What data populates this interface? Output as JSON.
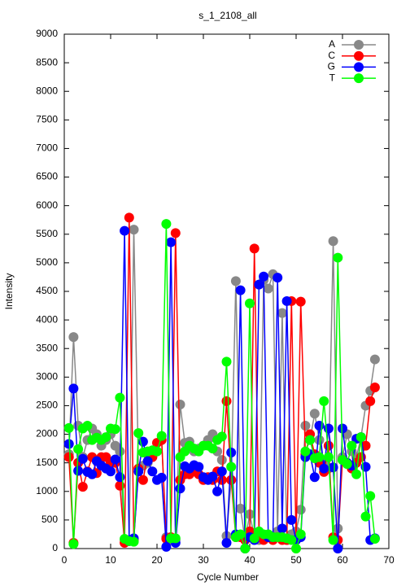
{
  "chart_data": {
    "type": "line",
    "title": "s_1_2108_all",
    "x_label": "Cycle Number",
    "y_label": "Intensity",
    "x": [
      1,
      2,
      3,
      4,
      5,
      6,
      7,
      8,
      9,
      10,
      11,
      12,
      13,
      14,
      15,
      16,
      17,
      18,
      19,
      20,
      21,
      22,
      23,
      24,
      25,
      26,
      27,
      28,
      29,
      30,
      31,
      32,
      33,
      34,
      35,
      36,
      37,
      38,
      39,
      40,
      41,
      42,
      43,
      44,
      45,
      46,
      47,
      48,
      49,
      50,
      51,
      52,
      53,
      54,
      55,
      56,
      57,
      58,
      59,
      60,
      61,
      62,
      63,
      64,
      65,
      66,
      67
    ],
    "xlim": [
      0,
      70
    ],
    "xticks": [
      0,
      10,
      20,
      30,
      40,
      50,
      60,
      70
    ],
    "ylim": [
      0,
      9000
    ],
    "yticks": [
      0,
      500,
      1000,
      1500,
      2000,
      2500,
      3000,
      3500,
      4000,
      4500,
      5000,
      5500,
      6000,
      6500,
      7000,
      7500,
      8000,
      8500,
      9000
    ],
    "legend": "upper right",
    "series": [
      {
        "name": "A",
        "color": "#888888",
        "values": [
          1650,
          3700,
          2150,
          1600,
          1900,
          2100,
          2000,
          1800,
          1900,
          2000,
          1800,
          1700,
          150,
          150,
          5580,
          1400,
          1450,
          1500,
          1600,
          1700,
          1900,
          200,
          150,
          150,
          2520,
          1850,
          1870,
          1700,
          1750,
          1800,
          1900,
          2000,
          1700,
          1550,
          220,
          1200,
          4680,
          700,
          150,
          600,
          200,
          150,
          4700,
          4550,
          4800,
          300,
          4120,
          150,
          250,
          300,
          680,
          2150,
          1900,
          2360,
          1900,
          1500,
          1400,
          5380,
          350,
          1600,
          2000,
          1700,
          1600,
          1950,
          2500,
          2760,
          3310
        ]
      },
      {
        "name": "C",
        "color": "#ff0000",
        "values": [
          1600,
          100,
          1500,
          1080,
          1350,
          1600,
          1320,
          1600,
          1600,
          1500,
          1500,
          1100,
          100,
          5790,
          150,
          1400,
          1200,
          1650,
          1600,
          1850,
          1900,
          170,
          200,
          5520,
          1200,
          1300,
          1300,
          1350,
          1300,
          1200,
          1250,
          1200,
          1350,
          1200,
          2580,
          1200,
          200,
          200,
          150,
          300,
          5250,
          200,
          150,
          200,
          150,
          200,
          150,
          150,
          4330,
          150,
          4320,
          1650,
          2000,
          1650,
          1500,
          1340,
          1800,
          200,
          150,
          1550,
          1500,
          1400,
          1500,
          1600,
          1800,
          2580,
          2820
        ]
      },
      {
        "name": "G",
        "color": "#0000ff",
        "values": [
          1830,
          2800,
          1360,
          1570,
          1340,
          1300,
          1530,
          1450,
          1400,
          1350,
          1560,
          1250,
          5560,
          130,
          180,
          1350,
          1870,
          1530,
          1350,
          1200,
          1240,
          30,
          5360,
          100,
          1050,
          1440,
          1400,
          1460,
          1430,
          1250,
          1200,
          1260,
          1000,
          1350,
          100,
          1680,
          250,
          4520,
          0,
          200,
          150,
          4620,
          4760,
          200,
          200,
          4740,
          350,
          4330,
          500,
          150,
          200,
          1600,
          1650,
          1250,
          2150,
          1400,
          2100,
          1420,
          0,
          2100,
          1500,
          1450,
          1920,
          1950,
          1430,
          150,
          180
        ]
      },
      {
        "name": "T",
        "color": "#00ff00",
        "values": [
          2110,
          80,
          1740,
          2100,
          2150,
          1900,
          1940,
          1900,
          1950,
          2100,
          2090,
          2640,
          170,
          130,
          120,
          2020,
          1680,
          1700,
          1720,
          1700,
          1970,
          5680,
          180,
          180,
          1600,
          1700,
          1800,
          1750,
          1700,
          1800,
          1800,
          1750,
          1900,
          1960,
          3270,
          1430,
          200,
          250,
          0,
          4290,
          180,
          300,
          250,
          250,
          200,
          200,
          200,
          180,
          150,
          0,
          250,
          1700,
          1900,
          1580,
          1600,
          2580,
          1600,
          150,
          5090,
          1550,
          1480,
          1800,
          1300,
          1950,
          560,
          920,
          170
        ]
      }
    ]
  }
}
